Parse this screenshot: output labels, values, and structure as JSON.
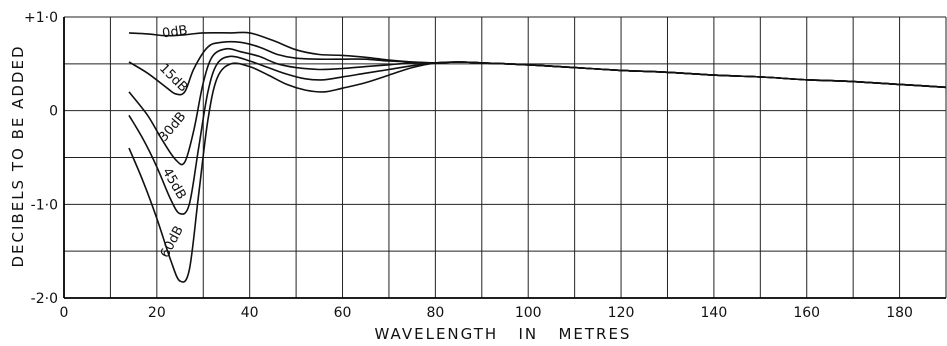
{
  "chart_data": {
    "type": "line",
    "title": "",
    "xlabel": "WAVELENGTH   IN   METRES",
    "ylabel": "DECIBELS TO BE ADDED",
    "xlim": [
      0,
      190
    ],
    "ylim": [
      -2.0,
      1.0
    ],
    "x_ticks": [
      0,
      20,
      40,
      60,
      80,
      100,
      120,
      140,
      160,
      180
    ],
    "x_tick_labels": [
      "0",
      "20",
      "40",
      "60",
      "80",
      "100",
      "120",
      "140",
      "160",
      "180"
    ],
    "y_ticks": [
      1.0,
      0,
      -1.0,
      -2.0
    ],
    "y_tick_labels": [
      "+1·0",
      "0",
      "-1·0",
      "-2·0"
    ],
    "grid": true,
    "legend": "none",
    "colors": {
      "line": "#111111",
      "grid": "#222222",
      "background": "#ffffff"
    },
    "series": [
      {
        "name": "0dB",
        "points": [
          [
            14,
            0.83
          ],
          [
            18,
            0.82
          ],
          [
            22,
            0.8
          ],
          [
            26,
            0.81
          ],
          [
            30,
            0.83
          ],
          [
            36,
            0.83
          ],
          [
            40,
            0.83
          ],
          [
            45,
            0.75
          ],
          [
            50,
            0.65
          ],
          [
            55,
            0.6
          ],
          [
            60,
            0.59
          ],
          [
            65,
            0.57
          ],
          [
            70,
            0.54
          ],
          [
            75,
            0.52
          ],
          [
            80,
            0.51
          ],
          [
            85,
            0.52
          ],
          [
            90,
            0.51
          ],
          [
            100,
            0.49
          ],
          [
            110,
            0.46
          ],
          [
            120,
            0.43
          ],
          [
            130,
            0.41
          ],
          [
            140,
            0.38
          ],
          [
            150,
            0.36
          ],
          [
            160,
            0.33
          ],
          [
            170,
            0.31
          ],
          [
            180,
            0.28
          ],
          [
            190,
            0.25
          ]
        ]
      },
      {
        "name": "15dB",
        "points": [
          [
            14,
            0.52
          ],
          [
            18,
            0.4
          ],
          [
            22,
            0.25
          ],
          [
            24,
            0.18
          ],
          [
            26,
            0.2
          ],
          [
            28,
            0.45
          ],
          [
            31,
            0.68
          ],
          [
            34,
            0.73
          ],
          [
            38,
            0.73
          ],
          [
            42,
            0.68
          ],
          [
            46,
            0.6
          ],
          [
            50,
            0.56
          ],
          [
            55,
            0.55
          ],
          [
            60,
            0.55
          ],
          [
            65,
            0.55
          ],
          [
            70,
            0.53
          ],
          [
            75,
            0.52
          ],
          [
            80,
            0.51
          ],
          [
            85,
            0.52
          ],
          [
            90,
            0.51
          ],
          [
            100,
            0.49
          ],
          [
            110,
            0.46
          ],
          [
            120,
            0.43
          ],
          [
            130,
            0.41
          ],
          [
            140,
            0.38
          ],
          [
            150,
            0.36
          ],
          [
            160,
            0.33
          ],
          [
            170,
            0.31
          ],
          [
            180,
            0.28
          ],
          [
            190,
            0.25
          ]
        ]
      },
      {
        "name": "30dB",
        "points": [
          [
            14,
            0.2
          ],
          [
            18,
            -0.05
          ],
          [
            21,
            -0.3
          ],
          [
            24,
            -0.52
          ],
          [
            26,
            -0.55
          ],
          [
            28,
            -0.2
          ],
          [
            30,
            0.3
          ],
          [
            32,
            0.58
          ],
          [
            35,
            0.66
          ],
          [
            38,
            0.63
          ],
          [
            42,
            0.58
          ],
          [
            46,
            0.5
          ],
          [
            50,
            0.46
          ],
          [
            55,
            0.44
          ],
          [
            60,
            0.45
          ],
          [
            65,
            0.47
          ],
          [
            70,
            0.49
          ],
          [
            75,
            0.51
          ],
          [
            80,
            0.51
          ],
          [
            85,
            0.52
          ],
          [
            90,
            0.51
          ],
          [
            100,
            0.49
          ],
          [
            110,
            0.46
          ],
          [
            120,
            0.43
          ],
          [
            130,
            0.41
          ],
          [
            140,
            0.38
          ],
          [
            150,
            0.36
          ],
          [
            160,
            0.33
          ],
          [
            170,
            0.31
          ],
          [
            180,
            0.28
          ],
          [
            190,
            0.25
          ]
        ]
      },
      {
        "name": "45dB",
        "points": [
          [
            14,
            -0.05
          ],
          [
            17,
            -0.3
          ],
          [
            20,
            -0.6
          ],
          [
            23,
            -0.95
          ],
          [
            25,
            -1.1
          ],
          [
            27,
            -1.0
          ],
          [
            29,
            -0.4
          ],
          [
            31,
            0.2
          ],
          [
            33,
            0.5
          ],
          [
            36,
            0.58
          ],
          [
            40,
            0.53
          ],
          [
            44,
            0.46
          ],
          [
            48,
            0.39
          ],
          [
            52,
            0.34
          ],
          [
            56,
            0.33
          ],
          [
            60,
            0.36
          ],
          [
            65,
            0.4
          ],
          [
            70,
            0.44
          ],
          [
            75,
            0.48
          ],
          [
            80,
            0.51
          ],
          [
            85,
            0.52
          ],
          [
            90,
            0.51
          ],
          [
            100,
            0.49
          ],
          [
            110,
            0.46
          ],
          [
            120,
            0.43
          ],
          [
            130,
            0.41
          ],
          [
            140,
            0.38
          ],
          [
            150,
            0.36
          ],
          [
            160,
            0.33
          ],
          [
            170,
            0.31
          ],
          [
            180,
            0.28
          ],
          [
            190,
            0.25
          ]
        ]
      },
      {
        "name": "60dB",
        "points": [
          [
            14,
            -0.4
          ],
          [
            17,
            -0.75
          ],
          [
            20,
            -1.15
          ],
          [
            23,
            -1.6
          ],
          [
            25,
            -1.82
          ],
          [
            27,
            -1.7
          ],
          [
            29,
            -0.9
          ],
          [
            31,
            -0.1
          ],
          [
            33,
            0.35
          ],
          [
            36,
            0.5
          ],
          [
            40,
            0.47
          ],
          [
            44,
            0.38
          ],
          [
            48,
            0.28
          ],
          [
            52,
            0.22
          ],
          [
            56,
            0.2
          ],
          [
            60,
            0.24
          ],
          [
            65,
            0.3
          ],
          [
            70,
            0.38
          ],
          [
            75,
            0.46
          ],
          [
            80,
            0.51
          ],
          [
            85,
            0.52
          ],
          [
            90,
            0.51
          ],
          [
            100,
            0.49
          ],
          [
            110,
            0.46
          ],
          [
            120,
            0.43
          ],
          [
            130,
            0.41
          ],
          [
            140,
            0.38
          ],
          [
            150,
            0.36
          ],
          [
            160,
            0.33
          ],
          [
            170,
            0.31
          ],
          [
            180,
            0.28
          ],
          [
            190,
            0.25
          ]
        ]
      }
    ],
    "curve_labels": [
      {
        "text": "0dB",
        "x": 24,
        "y": 0.8,
        "angle": -8
      },
      {
        "text": "15dB",
        "x": 23,
        "y": 0.32,
        "angle": 45
      },
      {
        "text": "30dB",
        "x": 24,
        "y": -0.2,
        "angle": -50
      },
      {
        "text": "45dB",
        "x": 23,
        "y": -0.8,
        "angle": 60
      },
      {
        "text": "60dB",
        "x": 24,
        "y": -1.42,
        "angle": -62
      }
    ]
  }
}
